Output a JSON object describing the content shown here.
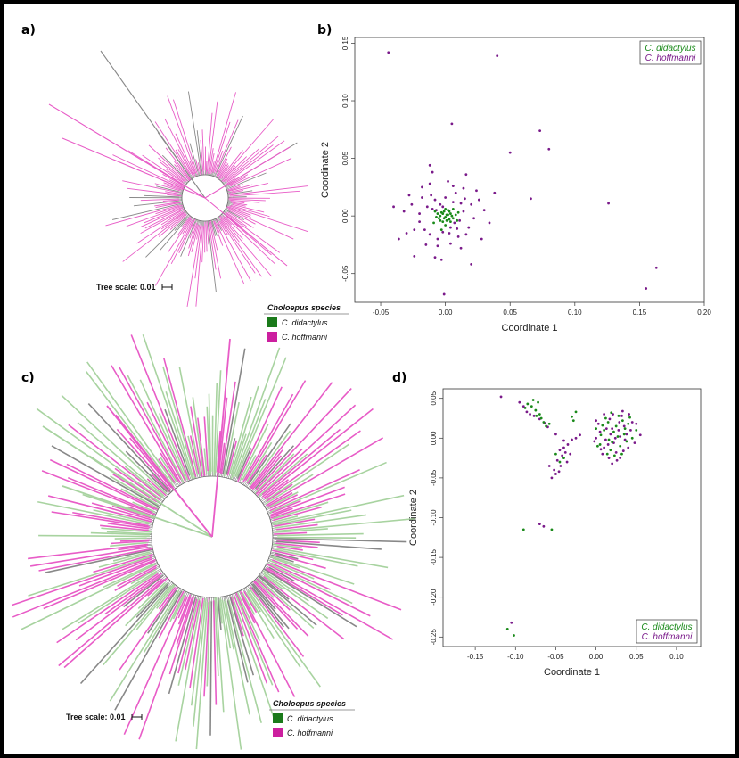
{
  "panels": {
    "a": {
      "label": "a)",
      "tree_scale": "Tree scale: 0.01"
    },
    "b": {
      "label": "b)"
    },
    "c": {
      "label": "c)",
      "tree_scale": "Tree scale: 0.01"
    },
    "d": {
      "label": "d)"
    }
  },
  "species_legend": {
    "title": "Choloepus species",
    "items": [
      {
        "name": "C. didactylus",
        "color": "#1a7a1a"
      },
      {
        "name": "C. hoffmanni",
        "color": "#cc1f9f"
      }
    ]
  },
  "colors": {
    "didactylus_scatter": "#1a8a1a",
    "hoffmanni_scatter": "#7a1a8a",
    "tree_pink": "#e85cc7",
    "tree_green": "#a8d3a0",
    "tree_gray": "#888888"
  },
  "chart_data": [
    {
      "panel": "b",
      "type": "scatter",
      "xlabel": "Coordinate 1",
      "ylabel": "Coordinate 2",
      "xlim": [
        -0.07,
        0.2
      ],
      "ylim": [
        -0.075,
        0.155
      ],
      "xticks": [
        "-0.05",
        "0.00",
        "0.05",
        "0.10",
        "0.15",
        "0.20"
      ],
      "yticks": [
        "-0.05",
        "0.00",
        "0.05",
        "0.10",
        "0.15"
      ],
      "xtick_values": [
        -0.05,
        0,
        0.05,
        0.1,
        0.15,
        0.2
      ],
      "ytick_values": [
        -0.05,
        0,
        0.05,
        0.1,
        0.15
      ],
      "legend_position": "top-right",
      "series": [
        {
          "name": "C. didactylus",
          "color": "#1a8a1a",
          "points": [
            [
              -0.002,
              0.002
            ],
            [
              0.0,
              -0.001
            ],
            [
              0.002,
              0.001
            ],
            [
              -0.004,
              0.0
            ],
            [
              0.003,
              -0.003
            ],
            [
              -0.001,
              0.004
            ],
            [
              0.004,
              0.002
            ],
            [
              -0.005,
              -0.002
            ],
            [
              0.001,
              -0.004
            ],
            [
              -0.003,
              0.003
            ],
            [
              0.005,
              0.0
            ],
            [
              -0.002,
              -0.005
            ],
            [
              0.0,
              0.006
            ],
            [
              0.006,
              -0.002
            ],
            [
              -0.006,
              0.002
            ],
            [
              0.002,
              0.005
            ],
            [
              -0.004,
              -0.004
            ],
            [
              0.003,
              0.004
            ],
            [
              0.008,
              0.001
            ],
            [
              -0.007,
              -0.001
            ],
            [
              0.001,
              0.001
            ],
            [
              -0.001,
              -0.002
            ],
            [
              0.004,
              -0.005
            ],
            [
              -0.003,
              -0.012
            ],
            [
              0.009,
              -0.004
            ],
            [
              -0.008,
              0.004
            ],
            [
              0.006,
              0.006
            ],
            [
              0.0,
              -0.008
            ],
            [
              0.01,
              0.003
            ],
            [
              -0.009,
              -0.006
            ]
          ]
        },
        {
          "name": "C. hoffmanni",
          "color": "#7a1a8a",
          "points": [
            [
              -0.044,
              0.142
            ],
            [
              0.04,
              0.139
            ],
            [
              0.005,
              0.08
            ],
            [
              0.073,
              0.074
            ],
            [
              0.08,
              0.058
            ],
            [
              0.05,
              0.055
            ],
            [
              0.126,
              0.011
            ],
            [
              0.163,
              -0.045
            ],
            [
              0.155,
              -0.063
            ],
            [
              0.066,
              0.015
            ],
            [
              0.038,
              0.02
            ],
            [
              -0.001,
              -0.068
            ],
            [
              -0.04,
              0.008
            ],
            [
              -0.036,
              -0.02
            ],
            [
              -0.024,
              -0.035
            ],
            [
              -0.012,
              0.044
            ],
            [
              -0.01,
              0.038
            ],
            [
              0.016,
              0.036
            ],
            [
              0.02,
              -0.042
            ],
            [
              -0.008,
              -0.036
            ],
            [
              -0.003,
              -0.038
            ],
            [
              -0.03,
              -0.015
            ],
            [
              -0.026,
              0.01
            ],
            [
              -0.018,
              0.025
            ],
            [
              0.024,
              0.022
            ],
            [
              0.03,
              0.005
            ],
            [
              0.028,
              -0.02
            ],
            [
              0.012,
              -0.028
            ],
            [
              -0.015,
              -0.025
            ],
            [
              -0.02,
              -0.005
            ],
            [
              0.015,
              0.015
            ],
            [
              0.018,
              -0.01
            ],
            [
              -0.011,
              0.018
            ],
            [
              0.008,
              0.02
            ],
            [
              -0.006,
              -0.02
            ],
            [
              0.01,
              -0.018
            ],
            [
              -0.014,
              0.008
            ],
            [
              0.014,
              0.004
            ],
            [
              -0.016,
              -0.012
            ],
            [
              0.02,
              0.01
            ],
            [
              0.006,
              0.012
            ],
            [
              -0.008,
              0.014
            ],
            [
              0.003,
              -0.015
            ],
            [
              -0.012,
              -0.016
            ],
            [
              0.012,
              0.011
            ],
            [
              0.009,
              -0.011
            ],
            [
              -0.01,
              0.006
            ],
            [
              0.011,
              -0.004
            ],
            [
              -0.004,
              0.01
            ],
            [
              0.004,
              -0.01
            ],
            [
              -0.02,
              0.002
            ],
            [
              0.022,
              -0.002
            ],
            [
              0.0,
              0.016
            ],
            [
              -0.002,
              -0.014
            ],
            [
              0.016,
              -0.016
            ],
            [
              -0.018,
              0.016
            ],
            [
              0.026,
              0.014
            ],
            [
              -0.024,
              -0.012
            ],
            [
              0.006,
              0.026
            ],
            [
              -0.006,
              -0.026
            ],
            [
              -0.032,
              0.004
            ],
            [
              0.034,
              -0.006
            ],
            [
              0.002,
              0.03
            ],
            [
              0.014,
              0.024
            ],
            [
              -0.012,
              0.028
            ],
            [
              -0.028,
              0.018
            ],
            [
              0.004,
              -0.024
            ],
            [
              -0.002,
              0.008
            ],
            [
              0.007,
              -0.006
            ],
            [
              -0.007,
              0.005
            ]
          ]
        }
      ]
    },
    {
      "panel": "d",
      "type": "scatter",
      "xlabel": "Coordinate 1",
      "ylabel": "Coordinate 2",
      "xlim": [
        -0.19,
        0.13
      ],
      "ylim": [
        -0.262,
        0.062
      ],
      "xticks": [
        "-0.15",
        "-0.10",
        "-0.05",
        "0.00",
        "0.05",
        "0.10"
      ],
      "yticks": [
        "-0.25",
        "-0.20",
        "-0.15",
        "-0.10",
        "-0.05",
        "0.00",
        "0.05"
      ],
      "xtick_values": [
        -0.15,
        -0.1,
        -0.05,
        0,
        0.05,
        0.1
      ],
      "ytick_values": [
        -0.25,
        -0.2,
        -0.15,
        -0.1,
        -0.05,
        0,
        0.05
      ],
      "legend_position": "bottom-right",
      "series": [
        {
          "name": "C. didactylus",
          "color": "#1a8a1a",
          "points": [
            [
              -0.085,
              0.043
            ],
            [
              -0.08,
              0.04
            ],
            [
              -0.075,
              0.035
            ],
            [
              -0.07,
              0.03
            ],
            [
              -0.078,
              0.048
            ],
            [
              -0.072,
              0.045
            ],
            [
              -0.068,
              0.025
            ],
            [
              -0.065,
              0.02
            ],
            [
              -0.088,
              0.038
            ],
            [
              -0.062,
              0.015
            ],
            [
              -0.074,
              0.028
            ],
            [
              -0.058,
              0.018
            ],
            [
              -0.025,
              0.033
            ],
            [
              -0.03,
              0.027
            ],
            [
              -0.028,
              0.022
            ],
            [
              -0.05,
              -0.02
            ],
            [
              -0.045,
              -0.03
            ],
            [
              -0.04,
              -0.025
            ],
            [
              -0.055,
              -0.115
            ],
            [
              -0.09,
              -0.115
            ],
            [
              -0.102,
              -0.248
            ],
            [
              -0.11,
              -0.24
            ],
            [
              0.01,
              0.01
            ],
            [
              0.02,
              -0.005
            ],
            [
              0.025,
              0.015
            ],
            [
              0.03,
              -0.01
            ],
            [
              0.015,
              0.02
            ],
            [
              0.035,
              0.005
            ],
            [
              0.005,
              -0.008
            ],
            [
              0.04,
              0.018
            ],
            [
              0.028,
              0.028
            ],
            [
              0.018,
              -0.015
            ],
            [
              0.012,
              0.025
            ],
            [
              0.022,
              0.008
            ],
            [
              0.032,
              -0.02
            ],
            [
              0.038,
              -0.004
            ],
            [
              0.008,
              0.016
            ],
            [
              0.045,
              0.0
            ],
            [
              0.027,
              0.002
            ],
            [
              0.016,
              -0.002
            ],
            [
              0.006,
              0.004
            ],
            [
              0.033,
              0.022
            ],
            [
              0.023,
              -0.022
            ],
            [
              0.042,
              0.026
            ],
            [
              0.002,
              -0.01
            ],
            [
              0.019,
              0.032
            ],
            [
              0.036,
              0.012
            ],
            [
              0.014,
              -0.02
            ],
            [
              0.05,
              0.01
            ],
            [
              0.0,
              0.012
            ]
          ]
        },
        {
          "name": "C. hoffmanni",
          "color": "#7a1a8a",
          "points": [
            [
              -0.118,
              0.052
            ],
            [
              -0.095,
              0.045
            ],
            [
              -0.09,
              0.04
            ],
            [
              -0.086,
              0.033
            ],
            [
              -0.082,
              0.03
            ],
            [
              -0.077,
              0.028
            ],
            [
              -0.07,
              0.024
            ],
            [
              -0.064,
              0.019
            ],
            [
              -0.06,
              0.014
            ],
            [
              -0.05,
              0.005
            ],
            [
              -0.04,
              -0.003
            ],
            [
              -0.035,
              -0.008
            ],
            [
              -0.03,
              -0.002
            ],
            [
              -0.045,
              -0.015
            ],
            [
              -0.042,
              -0.022
            ],
            [
              -0.038,
              -0.018
            ],
            [
              -0.048,
              -0.028
            ],
            [
              -0.036,
              -0.03
            ],
            [
              -0.044,
              -0.035
            ],
            [
              -0.05,
              -0.045
            ],
            [
              -0.055,
              -0.05
            ],
            [
              -0.052,
              -0.04
            ],
            [
              -0.046,
              -0.042
            ],
            [
              -0.058,
              -0.035
            ],
            [
              -0.04,
              -0.012
            ],
            [
              -0.032,
              -0.02
            ],
            [
              -0.025,
              0.0
            ],
            [
              -0.02,
              0.004
            ],
            [
              -0.07,
              -0.108
            ],
            [
              -0.065,
              -0.111
            ],
            [
              -0.105,
              -0.232
            ],
            [
              0.0,
              0.0
            ],
            [
              0.01,
              -0.012
            ],
            [
              0.02,
              0.012
            ],
            [
              0.03,
              0.002
            ],
            [
              0.015,
              -0.008
            ],
            [
              0.025,
              -0.018
            ],
            [
              0.035,
              0.015
            ],
            [
              0.005,
              0.008
            ],
            [
              0.04,
              -0.012
            ],
            [
              0.045,
              0.02
            ],
            [
              0.018,
              0.005
            ],
            [
              0.012,
              -0.002
            ],
            [
              0.028,
              0.01
            ],
            [
              0.022,
              -0.006
            ],
            [
              0.032,
              0.028
            ],
            [
              0.008,
              -0.02
            ],
            [
              0.038,
              0.005
            ],
            [
              0.048,
              -0.006
            ],
            [
              0.003,
              0.018
            ],
            [
              0.017,
              0.024
            ],
            [
              0.026,
              -0.028
            ],
            [
              0.034,
              -0.016
            ],
            [
              0.043,
              0.01
            ],
            [
              0.01,
              0.03
            ],
            [
              0.021,
              0.03
            ],
            [
              0.03,
              -0.025
            ],
            [
              -0.002,
              -0.004
            ],
            [
              0.05,
              0.018
            ],
            [
              0.013,
              0.012
            ],
            [
              0.024,
              0.0
            ],
            [
              0.036,
              -0.002
            ],
            [
              0.006,
              -0.014
            ],
            [
              0.041,
              0.03
            ],
            [
              0.016,
              -0.025
            ],
            [
              0.029,
              0.02
            ],
            [
              0.055,
              0.004
            ],
            [
              0.0,
              0.022
            ],
            [
              0.02,
              -0.032
            ],
            [
              0.033,
              0.034
            ]
          ]
        }
      ]
    }
  ]
}
